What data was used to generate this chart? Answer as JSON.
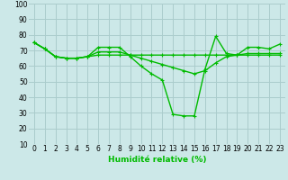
{
  "xlabel": "Humidité relative (%)",
  "background_color": "#cce8e8",
  "grid_color": "#aacccc",
  "line_color": "#00bb00",
  "xlim": [
    -0.5,
    23.5
  ],
  "ylim": [
    10,
    100
  ],
  "yticks": [
    10,
    20,
    30,
    40,
    50,
    60,
    70,
    80,
    90,
    100
  ],
  "xticks": [
    0,
    1,
    2,
    3,
    4,
    5,
    6,
    7,
    8,
    9,
    10,
    11,
    12,
    13,
    14,
    15,
    16,
    17,
    18,
    19,
    20,
    21,
    22,
    23
  ],
  "series1_x": [
    0,
    1,
    2,
    3,
    4,
    5,
    6,
    7,
    8,
    9,
    10,
    11,
    12,
    13,
    14,
    15,
    16,
    17,
    18,
    19,
    20,
    21,
    22,
    23
  ],
  "series1_y": [
    75,
    71,
    66,
    65,
    65,
    66,
    72,
    72,
    72,
    66,
    60,
    55,
    51,
    29,
    28,
    28,
    58,
    79,
    68,
    67,
    72,
    72,
    71,
    74
  ],
  "series2_x": [
    0,
    1,
    2,
    3,
    4,
    5,
    6,
    7,
    8,
    9,
    10,
    11,
    12,
    13,
    14,
    15,
    16,
    17,
    18,
    19,
    20,
    21,
    22,
    23
  ],
  "series2_y": [
    75,
    71,
    66,
    65,
    65,
    66,
    67,
    67,
    67,
    67,
    67,
    67,
    67,
    67,
    67,
    67,
    67,
    67,
    67,
    67,
    67,
    67,
    67,
    67
  ],
  "series3_x": [
    0,
    1,
    2,
    3,
    4,
    5,
    6,
    7,
    8,
    9,
    10,
    11,
    12,
    13,
    14,
    15,
    16,
    17,
    18,
    19,
    20,
    21,
    22,
    23
  ],
  "series3_y": [
    75,
    71,
    66,
    65,
    65,
    66,
    69,
    69,
    69,
    67,
    65,
    63,
    61,
    59,
    57,
    55,
    57,
    62,
    66,
    67,
    68,
    68,
    68,
    68
  ],
  "xlabel_fontsize": 6.5,
  "tick_fontsize": 5.5,
  "linewidth": 1.0,
  "markersize": 3.0
}
